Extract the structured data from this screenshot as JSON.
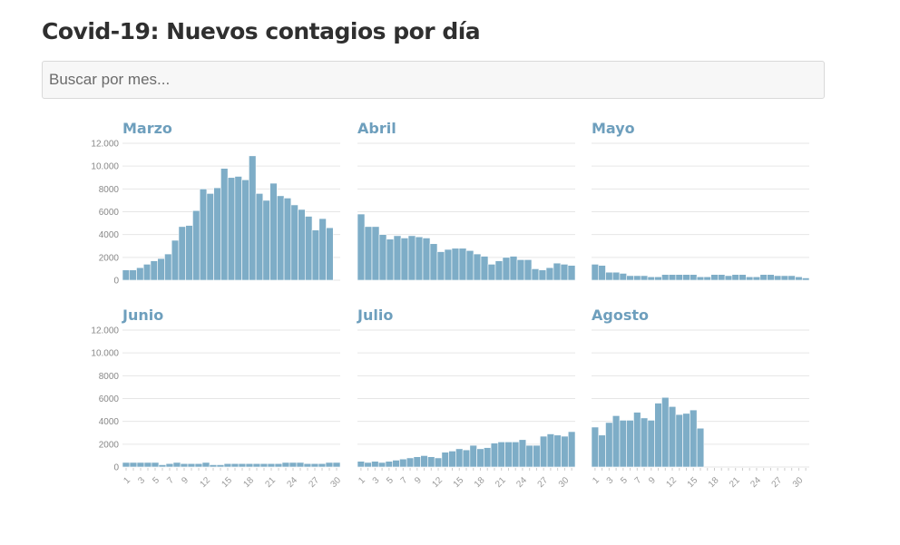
{
  "page": {
    "title": "Covid-19: Nuevos contagios por día",
    "search_placeholder": "Buscar por mes..."
  },
  "chart_data": {
    "type": "bar",
    "ylim": [
      0,
      12000
    ],
    "yticks": [
      0,
      2000,
      4000,
      6000,
      8000,
      10000,
      12000
    ],
    "ytick_labels": [
      "0",
      "2000",
      "4000",
      "6000",
      "8000",
      "10.000",
      "12.000"
    ],
    "xtick_labels": [
      "1",
      "3",
      "5",
      "7",
      "9",
      "12",
      "15",
      "18",
      "21",
      "24",
      "27",
      "30"
    ],
    "grid": true,
    "panels": [
      {
        "month": "Marzo",
        "days": 31,
        "values": [
          900,
          900,
          1100,
          1400,
          1700,
          1900,
          2300,
          3500,
          4700,
          4800,
          6100,
          8000,
          7600,
          8100,
          9800,
          9000,
          9100,
          8800,
          10900,
          7600,
          7000,
          8500,
          7400,
          7200,
          6600,
          6200,
          5600,
          4400,
          5400,
          4600
        ]
      },
      {
        "month": "Abril",
        "days": 30,
        "values": [
          5800,
          4700,
          4700,
          4000,
          3600,
          3900,
          3700,
          3900,
          3800,
          3700,
          3200,
          2500,
          2700,
          2800,
          2800,
          2600,
          2300,
          2100,
          1400,
          1700,
          2000,
          2100,
          1800,
          1800,
          1000,
          900,
          1100,
          1500,
          1400,
          1300
        ]
      },
      {
        "month": "Mayo",
        "days": 31,
        "values": [
          1400,
          1300,
          700,
          700,
          600,
          400,
          400,
          400,
          300,
          300,
          500,
          500,
          500,
          500,
          500,
          300,
          300,
          500,
          500,
          400,
          500,
          500,
          300,
          300,
          500,
          500,
          400,
          400,
          400,
          300,
          200
        ]
      },
      {
        "month": "Junio",
        "days": 30,
        "values": [
          400,
          400,
          400,
          400,
          400,
          200,
          300,
          400,
          300,
          300,
          300,
          400,
          200,
          200,
          300,
          300,
          300,
          300,
          300,
          300,
          300,
          300,
          400,
          400,
          400,
          300,
          300,
          300,
          400,
          400
        ]
      },
      {
        "month": "Julio",
        "days": 31,
        "values": [
          500,
          400,
          500,
          400,
          500,
          600,
          700,
          800,
          900,
          1000,
          900,
          800,
          1300,
          1400,
          1600,
          1500,
          1900,
          1600,
          1700,
          2100,
          2200,
          2200,
          2200,
          2400,
          1900,
          1900,
          2700,
          2900,
          2800,
          2700,
          3100
        ]
      },
      {
        "month": "Agosto",
        "days": 31,
        "values": [
          3500,
          2800,
          3900,
          4500,
          4100,
          4100,
          4800,
          4300,
          4100,
          5600,
          6100,
          5300,
          4600,
          4700,
          5000,
          3400
        ]
      }
    ]
  }
}
